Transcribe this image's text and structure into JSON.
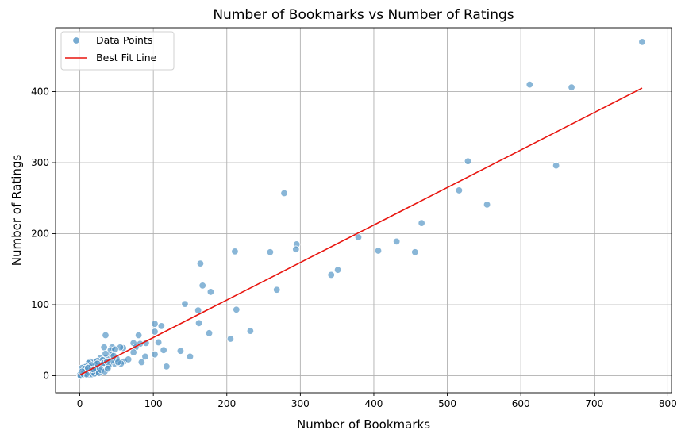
{
  "chart_data": {
    "type": "scatter",
    "title": "Number of Bookmarks vs Number of Ratings",
    "xlabel": "Number of Bookmarks",
    "ylabel": "Number of Ratings",
    "xlim": [
      -33,
      805
    ],
    "ylim": [
      -24,
      490
    ],
    "xticks": [
      0,
      100,
      200,
      300,
      400,
      500,
      600,
      700,
      800
    ],
    "yticks": [
      0,
      100,
      200,
      300,
      400
    ],
    "grid": true,
    "legend": {
      "position": "top-left",
      "entries": [
        {
          "label": "Data Points",
          "kind": "marker",
          "color": "#4a8fc2"
        },
        {
          "label": "Best Fit Line",
          "kind": "line",
          "color": "#e8150f"
        }
      ]
    },
    "point_color": "#4a8fc2",
    "line_color": "#e8150f",
    "best_fit": {
      "x": [
        0,
        765
      ],
      "y": [
        1,
        405
      ]
    },
    "series": [
      {
        "name": "Data Points",
        "points": [
          [
            765,
            470
          ],
          [
            612,
            410
          ],
          [
            669,
            406
          ],
          [
            528,
            302
          ],
          [
            648,
            296
          ],
          [
            516,
            261
          ],
          [
            554,
            241
          ],
          [
            278,
            257
          ],
          [
            465,
            215
          ],
          [
            379,
            195
          ],
          [
            431,
            189
          ],
          [
            295,
            185
          ],
          [
            294,
            178
          ],
          [
            406,
            176
          ],
          [
            456,
            174
          ],
          [
            259,
            174
          ],
          [
            211,
            175
          ],
          [
            164,
            158
          ],
          [
            351,
            149
          ],
          [
            342,
            142
          ],
          [
            268,
            121
          ],
          [
            167,
            127
          ],
          [
            178,
            118
          ],
          [
            143,
            101
          ],
          [
            161,
            92
          ],
          [
            213,
            93
          ],
          [
            162,
            74
          ],
          [
            102,
            73
          ],
          [
            111,
            70
          ],
          [
            102,
            62
          ],
          [
            232,
            63
          ],
          [
            176,
            60
          ],
          [
            80,
            57
          ],
          [
            35,
            57
          ],
          [
            107,
            47
          ],
          [
            137,
            35
          ],
          [
            114,
            36
          ],
          [
            205,
            52
          ],
          [
            150,
            27
          ],
          [
            118,
            13
          ],
          [
            102,
            30
          ],
          [
            89,
            27
          ],
          [
            84,
            19
          ],
          [
            90,
            46
          ],
          [
            82,
            45
          ],
          [
            73,
            46
          ],
          [
            76,
            40
          ],
          [
            73,
            33
          ],
          [
            59,
            39
          ],
          [
            55,
            40
          ],
          [
            44,
            40
          ],
          [
            42,
            36
          ],
          [
            33,
            40
          ],
          [
            48,
            37
          ],
          [
            60,
            20
          ],
          [
            66,
            23
          ],
          [
            56,
            17
          ],
          [
            47,
            17
          ],
          [
            40,
            16
          ],
          [
            43,
            30
          ],
          [
            36,
            25
          ],
          [
            28,
            25
          ],
          [
            24,
            21
          ],
          [
            31,
            22
          ],
          [
            20,
            19
          ],
          [
            14,
            20
          ],
          [
            12,
            18
          ],
          [
            9,
            14
          ],
          [
            6,
            12
          ],
          [
            4,
            9
          ],
          [
            3,
            11
          ],
          [
            2,
            5
          ],
          [
            1,
            3
          ],
          [
            0,
            1
          ],
          [
            1,
            0
          ],
          [
            5,
            2
          ],
          [
            8,
            4
          ],
          [
            10,
            6
          ],
          [
            12,
            8
          ],
          [
            15,
            10
          ],
          [
            17,
            7
          ],
          [
            19,
            12
          ],
          [
            22,
            9
          ],
          [
            25,
            14
          ],
          [
            27,
            11
          ],
          [
            30,
            16
          ],
          [
            33,
            18
          ],
          [
            37,
            20
          ],
          [
            39,
            13
          ],
          [
            45,
            22
          ],
          [
            50,
            24
          ],
          [
            52,
            19
          ],
          [
            11,
            1
          ],
          [
            14,
            3
          ],
          [
            16,
            2
          ],
          [
            18,
            5
          ],
          [
            20,
            3
          ],
          [
            23,
            6
          ],
          [
            26,
            4
          ],
          [
            6,
            6
          ],
          [
            9,
            2
          ],
          [
            13,
            13
          ],
          [
            21,
            11
          ],
          [
            29,
            8
          ],
          [
            34,
            6
          ],
          [
            38,
            10
          ],
          [
            7,
            10
          ],
          [
            3,
            6
          ],
          [
            16,
            15
          ],
          [
            24,
            17
          ],
          [
            18,
            9
          ],
          [
            11,
            11
          ],
          [
            46,
            28
          ],
          [
            35,
            31
          ]
        ]
      }
    ]
  }
}
